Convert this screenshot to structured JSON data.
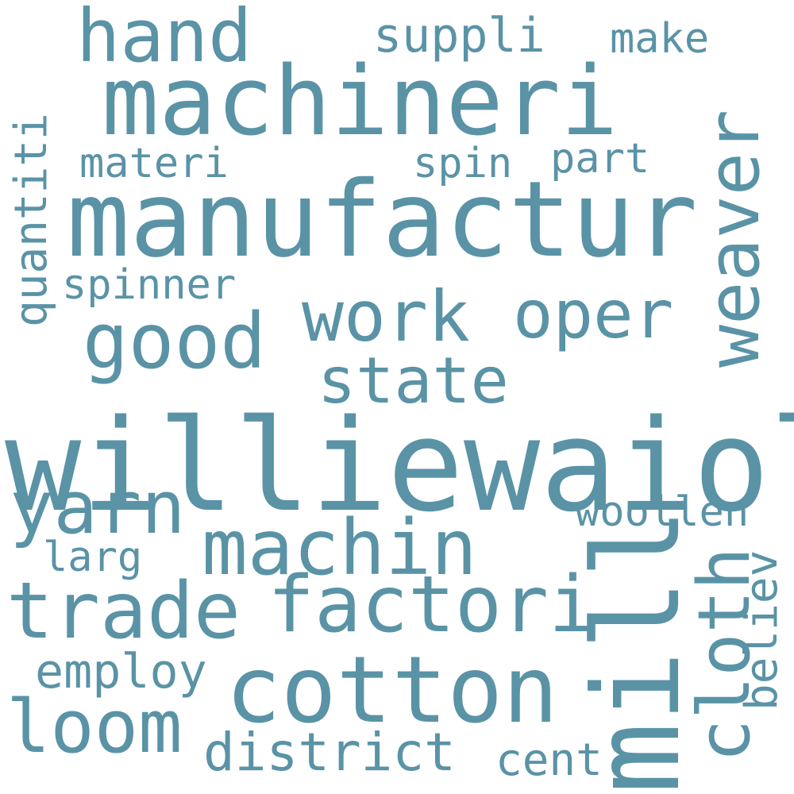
{
  "words": {
    "williewaiola": "williewaiola",
    "manufactur": "manufactur",
    "machineri": "machineri",
    "cotton": "cotton",
    "mill": "mill",
    "trade": "trade",
    "factori": "factori",
    "machin": "machin",
    "good": "good",
    "hand": "hand",
    "loom": "loom",
    "yarn": "yarn",
    "work": "work",
    "oper": "oper",
    "state": "state",
    "weaver": "weaver",
    "cloth": "cloth",
    "district": "district",
    "employ": "employ",
    "suppli": "suppli",
    "cent": "cent",
    "spinner": "spinner",
    "materi": "materi",
    "spin": "spin",
    "part": "part",
    "make": "make",
    "larg": "larg",
    "woollen": "woollen",
    "quantiti": "quantiti",
    "believ": "believ"
  },
  "colors": {
    "background": "#ffffff",
    "word": "#5a93a6"
  }
}
